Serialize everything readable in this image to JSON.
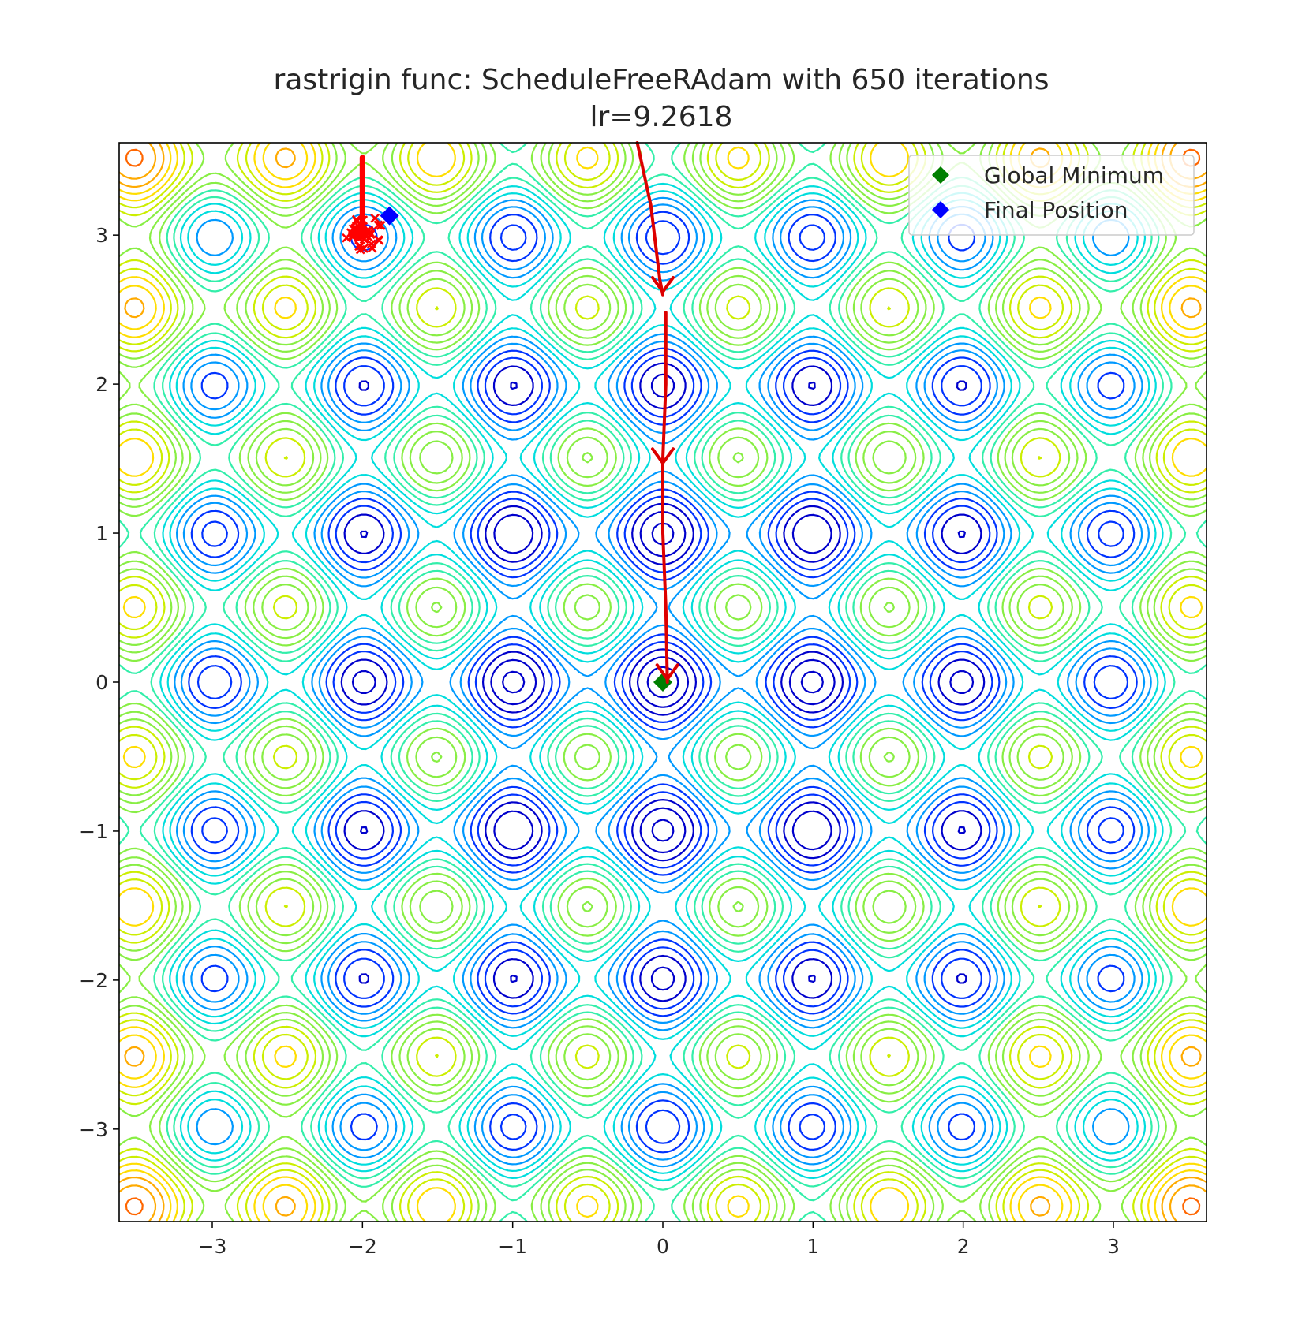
{
  "chart_data": {
    "type": "contour",
    "function": "rastrigin",
    "title": "rastrigin func: ScheduleFreeRAdam with 650 iterations",
    "subtitle": "lr=9.2618",
    "xlabel": "",
    "ylabel": "",
    "xlim": [
      -3.62,
      3.62
    ],
    "ylim": [
      -3.62,
      3.62
    ],
    "xticks": [
      -3,
      -2,
      -1,
      0,
      1,
      2,
      3
    ],
    "yticks": [
      -3,
      -2,
      -1,
      0,
      1,
      2,
      3
    ],
    "xtick_labels": [
      "−3",
      "−2",
      "−1",
      "0",
      "1",
      "2",
      "3"
    ],
    "ytick_labels": [
      "−3",
      "−2",
      "−1",
      "0",
      "1",
      "2",
      "3"
    ],
    "contour_colormap": "jet",
    "contour_colors": [
      "#0000cc",
      "#0033ff",
      "#0099ff",
      "#00dddd",
      "#33eeaa",
      "#88ee44",
      "#ccee00",
      "#ffdd00",
      "#ffaa00",
      "#ff6600",
      "#dd1100"
    ],
    "legend": {
      "position": "top-right",
      "entries": [
        {
          "label": "Global Minimum",
          "color": "#007f00",
          "marker": "diamond"
        },
        {
          "label": "Final Position",
          "color": "#0000ff",
          "marker": "diamond"
        }
      ]
    },
    "global_minimum": {
      "x": 0.0,
      "y": 0.0,
      "color": "#007f00"
    },
    "final_position": {
      "x": -1.82,
      "y": 3.13,
      "color": "#0000ff"
    },
    "trajectory": {
      "color": "#ff0000",
      "start": {
        "x": -2.0,
        "y": 3.52
      },
      "cluster": {
        "x": -2.0,
        "y": 3.02
      },
      "path": [
        [
          -2.0,
          3.52
        ],
        [
          -2.0,
          3.3
        ],
        [
          -2.0,
          3.1
        ],
        [
          -2.0,
          3.02
        ]
      ]
    },
    "annotation_arrows": {
      "color": "#dd0000",
      "path": [
        [
          -0.17,
          3.62
        ],
        [
          -0.08,
          3.2
        ],
        [
          -0.02,
          2.7
        ],
        [
          0.0,
          2.6
        ],
        [
          0.02,
          2.48
        ],
        [
          0.02,
          2.0
        ],
        [
          0.0,
          1.5
        ],
        [
          0.0,
          1.0
        ],
        [
          0.02,
          0.5
        ],
        [
          0.03,
          0.0
        ]
      ],
      "arrowheads": [
        [
          0.0,
          2.62
        ],
        [
          0.0,
          1.47
        ],
        [
          0.03,
          0.02
        ]
      ]
    }
  }
}
